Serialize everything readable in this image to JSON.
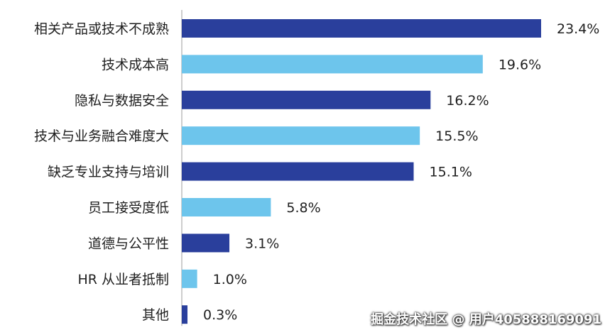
{
  "chart_data": {
    "type": "bar",
    "orientation": "horizontal",
    "categories": [
      "相关产品或技术不成熟",
      "技术成本高",
      "隐私与数据安全",
      "技术与业务融合难度大",
      "缺乏专业支持与培训",
      "员工接受度低",
      "道德与公平性",
      "HR 从业者抵制",
      "其他"
    ],
    "values": [
      23.4,
      19.6,
      16.2,
      15.5,
      15.1,
      5.8,
      3.1,
      1.0,
      0.3
    ],
    "value_labels": [
      "23.4%",
      "19.6%",
      "16.2%",
      "15.5%",
      "15.1%",
      "5.8%",
      "3.1%",
      "1.0%",
      "0.3%"
    ],
    "unit": "%",
    "colors": [
      "#2a3f9c",
      "#6dc5ec",
      "#2a3f9c",
      "#6dc5ec",
      "#2a3f9c",
      "#6dc5ec",
      "#2a3f9c",
      "#6dc5ec",
      "#2a3f9c"
    ],
    "xlim": [
      0,
      23.4
    ],
    "grid": false
  },
  "watermark": "掘金技术社区 @ 用户405888169091"
}
